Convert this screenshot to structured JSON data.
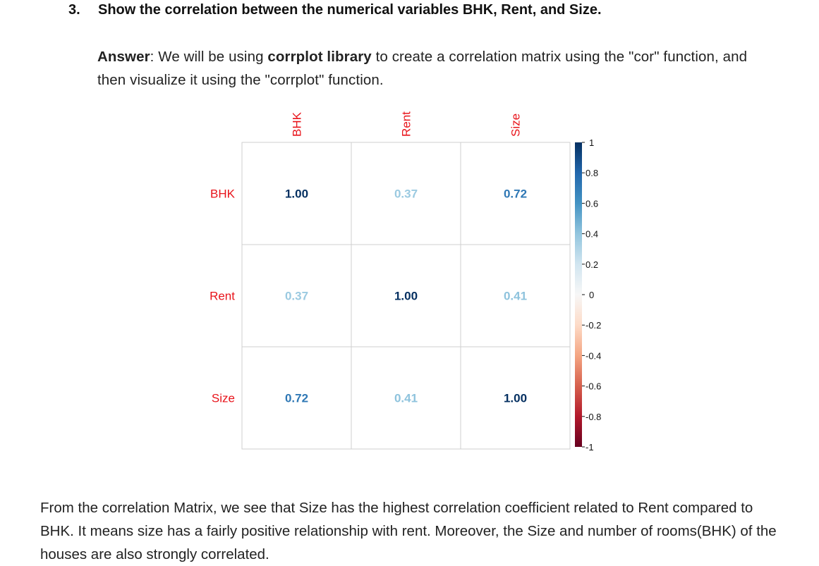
{
  "heading": {
    "number": "3.",
    "title": "Show the correlation between the numerical variables BHK, Rent, and Size."
  },
  "answer": {
    "label": "Answer",
    "text_1": ": We will be using ",
    "bold_lib": "corrplot library",
    "text_2": " to create a correlation matrix using the \"cor\" function, and then visualize it using the \"corrplot\" function."
  },
  "conclusion": "From the correlation Matrix, we see that Size has the highest correlation coefficient related to Rent compared to BHK. It means size has a fairly positive relationship with rent. Moreover, the Size and number of rooms(BHK) of the houses are also strongly correlated.",
  "chart_data": {
    "type": "heatmap",
    "variables": [
      "BHK",
      "Rent",
      "Size"
    ],
    "matrix": [
      [
        1.0,
        0.37,
        0.72
      ],
      [
        0.37,
        1.0,
        0.41
      ],
      [
        0.72,
        0.41,
        1.0
      ]
    ],
    "legend": {
      "range": [
        -1,
        1
      ],
      "ticks": [
        "1",
        "0.8",
        "0.6",
        "0.4",
        "0.2",
        "0",
        "-0.2",
        "-0.4",
        "-0.6",
        "-0.8",
        "-1"
      ]
    },
    "colors": {
      "positive": "#053061",
      "neutral": "#f7f7f7",
      "negative": "#67001f",
      "label": "#e8131a"
    }
  }
}
